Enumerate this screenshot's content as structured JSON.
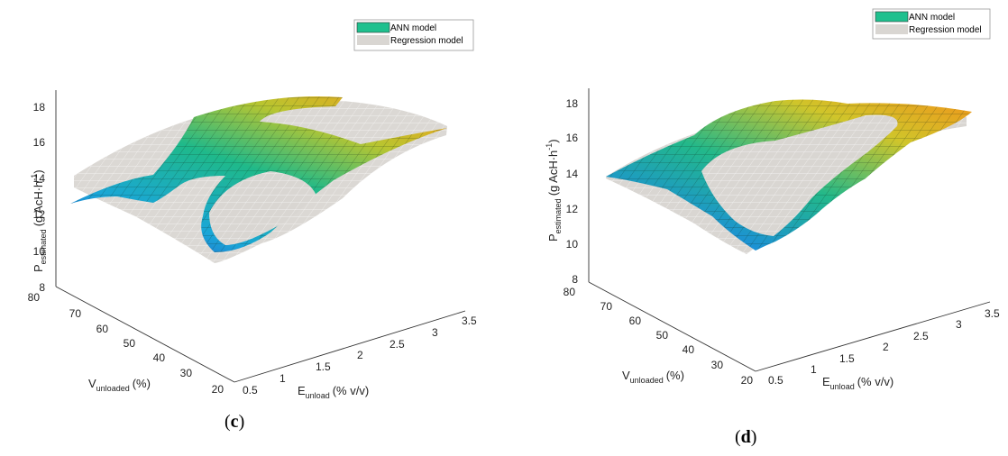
{
  "colors": {
    "ann_surface": "#1fc08e",
    "regression_surface": "#d9d6d2",
    "low": "#3b2fb0",
    "mid": "#18a0d8",
    "high": "#f0d020"
  },
  "chart_data": [
    {
      "type": "surface",
      "panel_label": "c",
      "legend": [
        "ANN model",
        "Regression model"
      ],
      "zlabel": {
        "main": "P",
        "sub": "estimated",
        "unit": "(g AcH·h",
        "sup": "-1",
        "close": ")"
      },
      "xlabel": {
        "main": "E",
        "sub": "unload",
        "unit": "(% v/v)"
      },
      "ylabel": {
        "main": "V",
        "sub": "unloaded",
        "unit": "(%)"
      },
      "zticks": [
        "8",
        "10",
        "12",
        "14",
        "16",
        "18"
      ],
      "yticks": [
        "80",
        "70",
        "60",
        "50",
        "40",
        "30",
        "20"
      ],
      "xticks": [
        "0.5",
        "1",
        "1.5",
        "2",
        "2.5",
        "3",
        "3.5"
      ],
      "x_range": [
        0.5,
        3.5
      ],
      "y_range": [
        20,
        80
      ],
      "z_range": [
        8,
        18
      ],
      "series": [
        {
          "name": "ANN model",
          "z_min_approx": 10,
          "z_max_approx": 18.5
        },
        {
          "name": "Regression model",
          "z_min_approx": 9.5,
          "z_max_approx": 17
        }
      ]
    },
    {
      "type": "surface",
      "panel_label": "d",
      "legend": [
        "ANN model",
        "Regression model"
      ],
      "zlabel": {
        "main": "P",
        "sub": "estimated",
        "unit": "(g AcH·h",
        "sup": "-1",
        "close": ")"
      },
      "xlabel": {
        "main": "E",
        "sub": "unload",
        "unit": "(% v/v)"
      },
      "ylabel": {
        "main": "V",
        "sub": "unloaded",
        "unit": "(%)"
      },
      "zticks": [
        "8",
        "10",
        "12",
        "14",
        "16",
        "18"
      ],
      "yticks": [
        "80",
        "70",
        "60",
        "50",
        "40",
        "30",
        "20"
      ],
      "xticks": [
        "0.5",
        "1",
        "1.5",
        "2",
        "2.5",
        "3",
        "3.5"
      ],
      "x_range": [
        0.5,
        3.5
      ],
      "y_range": [
        20,
        80
      ],
      "z_range": [
        8,
        18
      ],
      "series": [
        {
          "name": "ANN model",
          "z_min_approx": 9.7,
          "z_max_approx": 18.2
        },
        {
          "name": "Regression model",
          "z_min_approx": 9.5,
          "z_max_approx": 17
        }
      ]
    }
  ]
}
